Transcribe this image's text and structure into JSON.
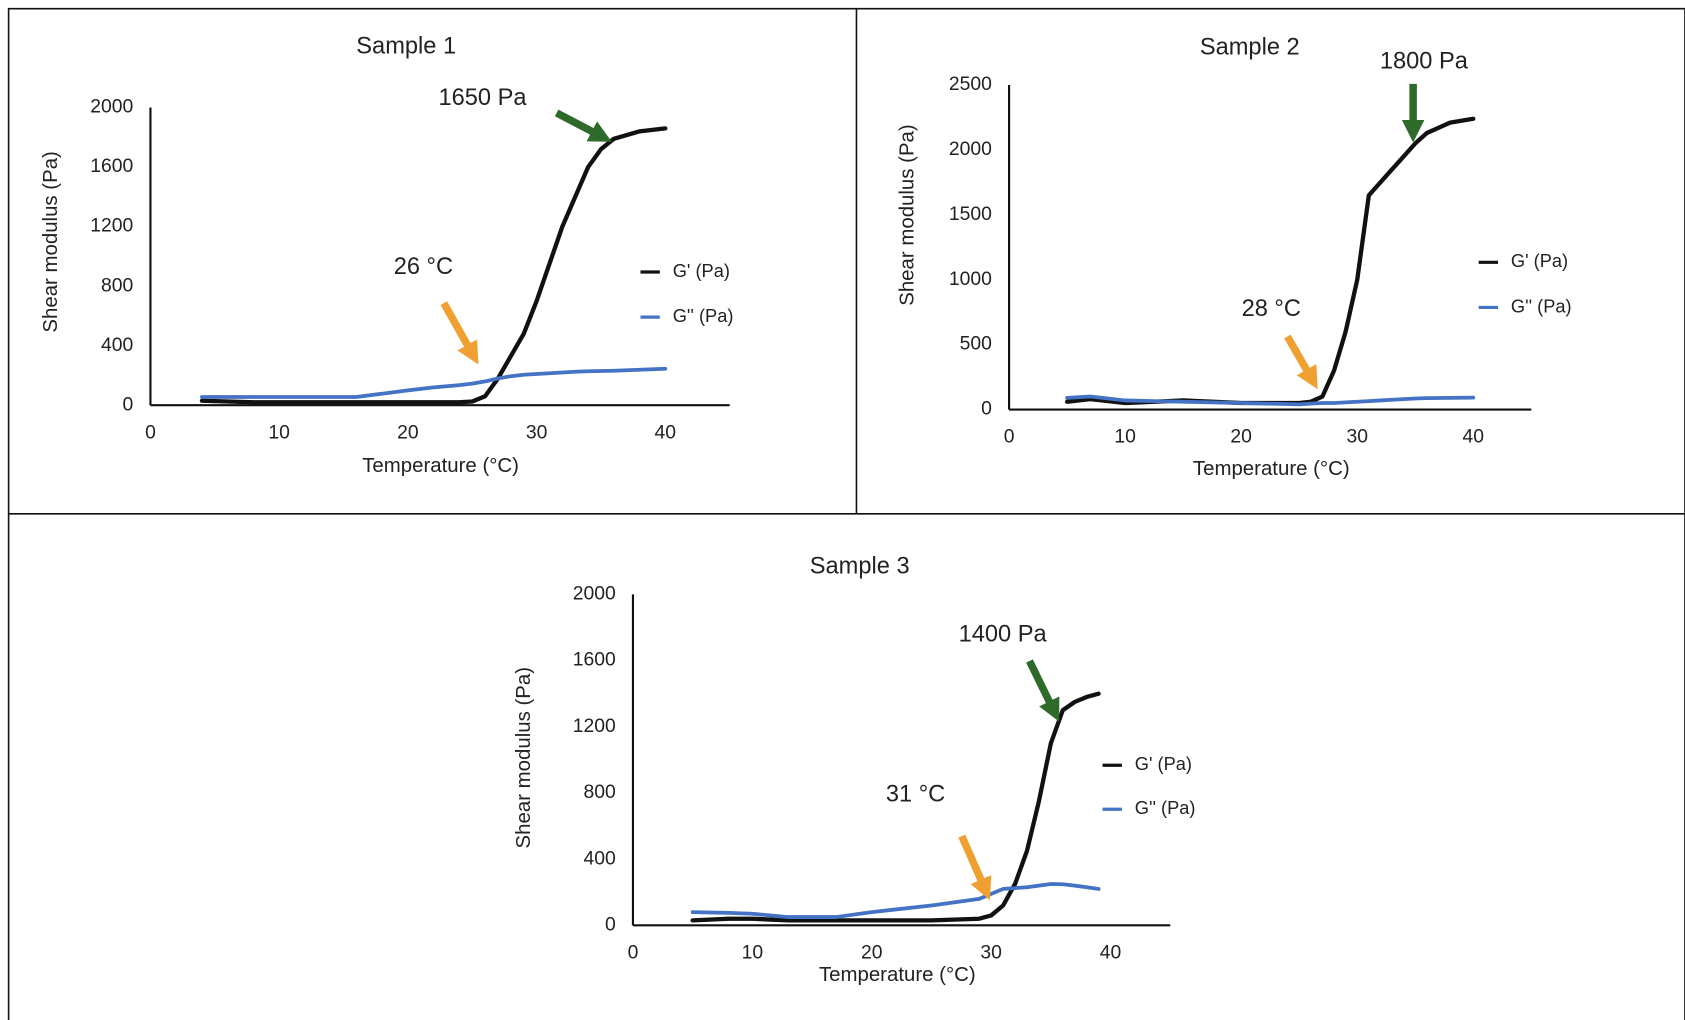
{
  "chart_data": [
    {
      "type": "line",
      "title": "Sample 1",
      "xlabel": "Temperature (°C)",
      "ylabel": "Shear modulus (Pa)",
      "x": [
        4,
        8,
        12,
        16,
        20,
        22,
        24,
        25,
        26,
        27,
        28,
        29,
        30,
        31,
        32,
        33,
        34,
        35,
        36,
        38,
        40
      ],
      "series": [
        {
          "name": "G' (Pa)",
          "color": "#111111",
          "values": [
            30,
            20,
            20,
            20,
            20,
            20,
            20,
            25,
            60,
            180,
            330,
            480,
            700,
            950,
            1200,
            1400,
            1600,
            1720,
            1790,
            1840,
            1860
          ]
        },
        {
          "name": "G'' (Pa)",
          "color": "#4472c4",
          "values": [
            55,
            55,
            55,
            55,
            100,
            120,
            135,
            145,
            160,
            180,
            195,
            205,
            210,
            215,
            220,
            225,
            228,
            230,
            232,
            238,
            245
          ]
        }
      ],
      "xlim": [
        0,
        45
      ],
      "xticks": [
        0,
        10,
        20,
        30,
        40
      ],
      "ylim": [
        0,
        2000
      ],
      "yticks": [
        0,
        400,
        800,
        1200,
        1600,
        2000
      ],
      "annotations": [
        {
          "text": "1650 Pa",
          "color": "#2e6b2a"
        },
        {
          "text": "26 °C",
          "color": "#f0a030"
        }
      ]
    },
    {
      "type": "line",
      "title": "Sample 2",
      "xlabel": "Temperature (°C)",
      "ylabel": "Shear modulus (Pa)",
      "x": [
        5,
        7,
        10,
        15,
        20,
        25,
        26,
        27,
        28,
        29,
        30,
        31,
        32,
        33,
        34,
        35,
        36,
        38,
        40
      ],
      "series": [
        {
          "name": "G' (Pa)",
          "color": "#111111",
          "values": [
            60,
            80,
            50,
            70,
            50,
            50,
            60,
            100,
            300,
            600,
            1000,
            1650,
            1750,
            1850,
            1950,
            2050,
            2130,
            2210,
            2240
          ]
        },
        {
          "name": "G'' (Pa)",
          "color": "#4472c4",
          "values": [
            90,
            100,
            70,
            60,
            50,
            40,
            45,
            50,
            50,
            55,
            60,
            65,
            70,
            75,
            80,
            85,
            88,
            90,
            92
          ]
        }
      ],
      "xlim": [
        0,
        45
      ],
      "xticks": [
        0,
        10,
        20,
        30,
        40
      ],
      "ylim": [
        0,
        2500
      ],
      "yticks": [
        0,
        500,
        1000,
        1500,
        2000,
        2500
      ],
      "annotations": [
        {
          "text": "1800 Pa",
          "color": "#2e6b2a"
        },
        {
          "text": "28 °C",
          "color": "#f0a030"
        }
      ]
    },
    {
      "type": "line",
      "title": "Sample 3",
      "xlabel": "Temperature (°C)",
      "ylabel": "Shear modulus (Pa)",
      "x": [
        5,
        8,
        10,
        13,
        17,
        20,
        25,
        29,
        30,
        31,
        32,
        33,
        34,
        35,
        36,
        37,
        38,
        39
      ],
      "series": [
        {
          "name": "G' (Pa)",
          "color": "#111111",
          "values": [
            30,
            40,
            40,
            30,
            30,
            30,
            30,
            40,
            60,
            120,
            250,
            450,
            750,
            1100,
            1300,
            1350,
            1380,
            1400
          ]
        },
        {
          "name": "G'' (Pa)",
          "color": "#4472c4",
          "values": [
            80,
            75,
            70,
            50,
            50,
            80,
            120,
            160,
            190,
            220,
            225,
            230,
            240,
            250,
            248,
            240,
            230,
            220
          ]
        }
      ],
      "xlim": [
        0,
        45
      ],
      "xticks": [
        0,
        10,
        20,
        30,
        40
      ],
      "ylim": [
        0,
        2000
      ],
      "yticks": [
        0,
        400,
        800,
        1200,
        1600,
        2000
      ],
      "annotations": [
        {
          "text": "1400 Pa",
          "color": "#2e6b2a"
        },
        {
          "text": "31 °C",
          "color": "#f0a030"
        }
      ]
    }
  ]
}
